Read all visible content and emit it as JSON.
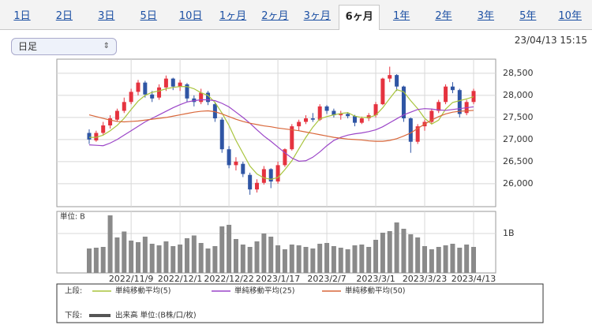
{
  "tabs": [
    "1日",
    "2日",
    "3日",
    "5日",
    "10日",
    "1ヶ月",
    "2ヶ月",
    "3ヶ月",
    "6ヶ月",
    "1年",
    "2年",
    "3年",
    "5年",
    "10年"
  ],
  "active_tab": 8,
  "interval_select": "日足",
  "timestamp": "23/04/13 15:15",
  "chart_data": {
    "type": "candlestick",
    "categories": [
      null,
      null,
      null,
      null,
      null,
      null,
      "2022/11/9",
      null,
      null,
      null,
      null,
      null,
      null,
      "2022/12/1",
      null,
      null,
      null,
      null,
      null,
      null,
      "2022/12/22",
      null,
      null,
      null,
      null,
      null,
      null,
      "2023/1/17",
      null,
      null,
      null,
      null,
      null,
      null,
      "2023/2/7",
      null,
      null,
      null,
      null,
      null,
      null,
      "2023/3/1",
      null,
      null,
      null,
      null,
      null,
      null,
      "2023/3/23",
      null,
      null,
      null,
      null,
      null,
      null,
      "2023/4/13"
    ],
    "open": [
      27150,
      26980,
      27150,
      27320,
      27450,
      27650,
      27850,
      28080,
      28290,
      28020,
      27950,
      28180,
      28380,
      28200,
      28250,
      27930,
      27850,
      28060,
      27800,
      27450,
      26780,
      26420,
      26450,
      26200,
      25870,
      26020,
      26330,
      26050,
      26420,
      26780,
      27300,
      27400,
      27480,
      27450,
      27750,
      27650,
      27550,
      27580,
      27530,
      27380,
      27480,
      27550,
      27800,
      28380,
      28460,
      28200,
      27480,
      26950,
      27300,
      27400,
      27650,
      27850,
      28200,
      28120,
      27600,
      27850
    ],
    "high": [
      27230,
      27200,
      27400,
      27550,
      27700,
      27950,
      28150,
      28350,
      28330,
      28100,
      28250,
      28450,
      28400,
      28350,
      28280,
      28000,
      28150,
      28100,
      27850,
      27500,
      26850,
      26600,
      26500,
      26250,
      26100,
      26400,
      26350,
      26500,
      26800,
      27350,
      27450,
      27550,
      27600,
      27800,
      27780,
      27700,
      27650,
      27620,
      27560,
      27520,
      27600,
      27850,
      28400,
      28650,
      28480,
      28220,
      27500,
      27350,
      27450,
      27700,
      27900,
      28250,
      28300,
      28150,
      27900,
      28150
    ],
    "low": [
      26900,
      26950,
      27100,
      27250,
      27400,
      27600,
      27800,
      28000,
      27950,
      27850,
      27900,
      28100,
      28120,
      28100,
      27850,
      27750,
      27800,
      27780,
      27400,
      26700,
      26350,
      26300,
      26150,
      25750,
      25800,
      25980,
      25900,
      26000,
      26380,
      26750,
      27200,
      27350,
      27400,
      27420,
      27580,
      27500,
      27450,
      27480,
      27300,
      27350,
      27420,
      27500,
      27780,
      28300,
      28100,
      27400,
      26700,
      26900,
      27200,
      27350,
      27600,
      27800,
      28050,
      27500,
      27550,
      27800
    ],
    "close": [
      27000,
      27150,
      27320,
      27480,
      27650,
      27850,
      28080,
      28290,
      28020,
      27930,
      28180,
      28380,
      28200,
      28290,
      27930,
      27850,
      28060,
      27850,
      27480,
      26780,
      26420,
      26500,
      26220,
      25870,
      26020,
      26330,
      26050,
      26420,
      26780,
      27300,
      27400,
      27480,
      27450,
      27750,
      27650,
      27550,
      27580,
      27530,
      27380,
      27480,
      27550,
      27800,
      28380,
      28460,
      28200,
      27480,
      26950,
      27300,
      27400,
      27650,
      27850,
      28200,
      28120,
      27580,
      27850,
      28100
    ],
    "up_color": "#e5333f",
    "down_color": "#2f55a4",
    "series": [
      {
        "name": "単純移動平均(5)",
        "color": "#a8c43c",
        "values": [
          27050,
          27050,
          27100,
          27200,
          27320,
          27480,
          27680,
          27870,
          28000,
          28070,
          28100,
          28150,
          28180,
          28200,
          28200,
          28150,
          28060,
          28000,
          27840,
          27600,
          27320,
          26980,
          26690,
          26400,
          26220,
          26130,
          26100,
          26140,
          26320,
          26520,
          26790,
          27050,
          27280,
          27470,
          27520,
          27560,
          27590,
          27610,
          27530,
          27500,
          27500,
          27550,
          27720,
          27930,
          28130,
          28080,
          27880,
          27700,
          27480,
          27350,
          27440,
          27690,
          27840,
          27880,
          27920,
          27970
        ]
      },
      {
        "name": "単純移動平均(25)",
        "color": "#9b45c8",
        "values": [
          26880,
          26870,
          26860,
          26920,
          27000,
          27100,
          27200,
          27300,
          27400,
          27480,
          27560,
          27640,
          27720,
          27790,
          27850,
          27880,
          27900,
          27900,
          27880,
          27820,
          27740,
          27620,
          27500,
          27370,
          27220,
          27080,
          26960,
          26830,
          26700,
          26580,
          26510,
          26520,
          26600,
          26720,
          26860,
          26980,
          27050,
          27100,
          27130,
          27150,
          27180,
          27220,
          27290,
          27380,
          27470,
          27560,
          27620,
          27680,
          27700,
          27690,
          27670,
          27660,
          27680,
          27700,
          27720,
          27740
        ]
      },
      {
        "name": "単純移動平均(50)",
        "color": "#d9673a",
        "values": [
          27560,
          27520,
          27480,
          27440,
          27410,
          27400,
          27410,
          27420,
          27440,
          27460,
          27480,
          27500,
          27530,
          27560,
          27590,
          27620,
          27640,
          27650,
          27630,
          27580,
          27520,
          27460,
          27410,
          27370,
          27340,
          27310,
          27290,
          27260,
          27240,
          27220,
          27200,
          27170,
          27140,
          27110,
          27080,
          27050,
          27030,
          27010,
          27000,
          26990,
          26970,
          26960,
          26960,
          26980,
          27020,
          27080,
          27150,
          27250,
          27350,
          27440,
          27520,
          27580,
          27620,
          27640,
          27650,
          27660
        ]
      }
    ],
    "ylim": [
      25480,
      28820
    ],
    "yticks": [
      {
        "value": 26000,
        "label": "26,000"
      },
      {
        "value": 26500,
        "label": "26,500"
      },
      {
        "value": 27000,
        "label": "27,000"
      },
      {
        "value": 27500,
        "label": "27,500"
      },
      {
        "value": 28000,
        "label": "28,000"
      },
      {
        "value": 28500,
        "label": "28,500"
      }
    ],
    "grid": true,
    "volume": {
      "unit_label": "単位: B",
      "series": [
        {
          "name": "出来高 単位:(B株/口/枚)",
          "color": "#8a8a8a",
          "values": [
            0.62,
            0.64,
            0.66,
            1.46,
            0.9,
            1.05,
            0.82,
            0.78,
            0.92,
            0.74,
            0.7,
            0.8,
            0.68,
            0.72,
            0.88,
            0.95,
            0.76,
            0.62,
            0.68,
            1.18,
            1.22,
            0.86,
            0.72,
            0.66,
            0.8,
            1.0,
            0.92,
            0.7,
            0.6,
            0.72,
            0.7,
            0.66,
            0.62,
            0.74,
            0.76,
            0.68,
            0.64,
            0.6,
            0.7,
            0.72,
            0.66,
            0.84,
            1.02,
            1.06,
            1.28,
            1.12,
            0.98,
            0.9,
            0.68,
            0.6,
            0.66,
            0.7,
            0.74,
            0.64,
            0.72,
            0.66
          ]
        }
      ],
      "ylim": [
        0,
        1.56
      ],
      "yticks": [
        {
          "value": 1,
          "label": "1B"
        }
      ]
    },
    "legend_upper": "上段:",
    "legend_lower": "下段:"
  }
}
